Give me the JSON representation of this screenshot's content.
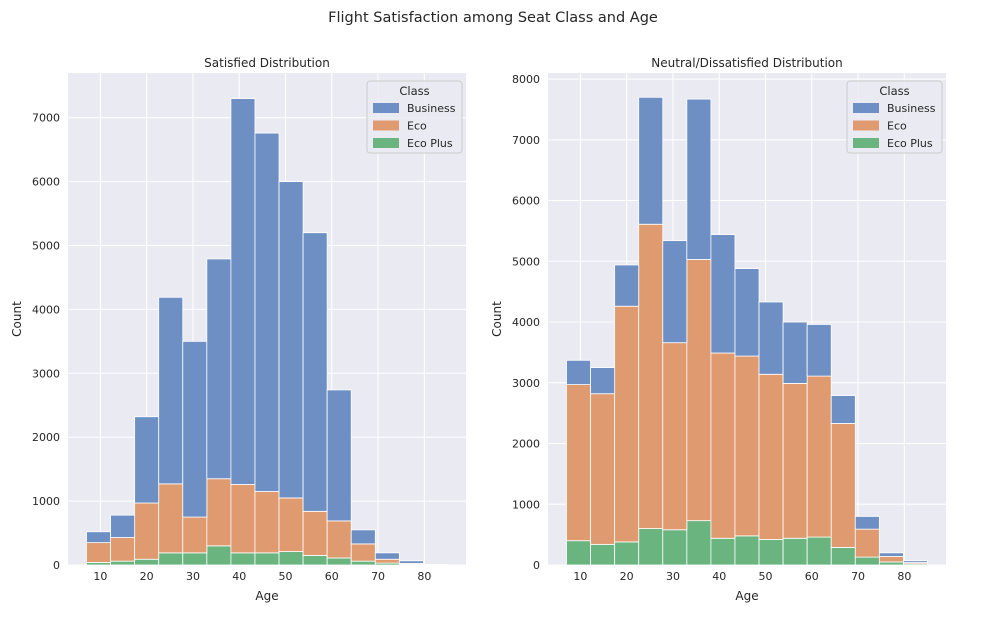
{
  "figure": {
    "title": "Flight Satisfaction among Seat Class and Age"
  },
  "colors": {
    "Business": "#6e8fc4",
    "Eco": "#e09a70",
    "Eco Plus": "#6ab57f",
    "panel_bg": "#eaeaf2",
    "grid": "#ffffff"
  },
  "chart_data": [
    {
      "type": "bar",
      "stacked": true,
      "title": "Satisfied Distribution",
      "xlabel": "Age",
      "ylabel": "Count",
      "xlim": [
        3,
        89
      ],
      "ylim": [
        0,
        7700
      ],
      "xticks": [
        10,
        20,
        30,
        40,
        50,
        60,
        70,
        80
      ],
      "yticks": [
        0,
        1000,
        2000,
        3000,
        4000,
        5000,
        6000,
        7000
      ],
      "bin_edges": [
        7,
        12.2,
        17.4,
        22.6,
        27.8,
        33,
        38.2,
        43.4,
        48.6,
        53.8,
        59,
        64.2,
        69.4,
        74.6,
        79.8,
        85
      ],
      "legend": {
        "title": "Class",
        "loc": "upper right"
      },
      "grid": true,
      "series": [
        {
          "name": "Eco Plus",
          "values": [
            40,
            60,
            90,
            190,
            190,
            300,
            190,
            190,
            210,
            150,
            110,
            60,
            30,
            10,
            5
          ]
        },
        {
          "name": "Eco",
          "values": [
            310,
            370,
            880,
            1080,
            560,
            1050,
            1070,
            960,
            840,
            690,
            580,
            270,
            60,
            15,
            5
          ]
        },
        {
          "name": "Business",
          "values": [
            170,
            350,
            1350,
            2920,
            2750,
            3440,
            6040,
            5610,
            4950,
            4360,
            2050,
            220,
            100,
            40,
            0
          ]
        }
      ],
      "totals": [
        520,
        780,
        2320,
        4190,
        3500,
        4790,
        7300,
        6760,
        6000,
        5200,
        2740,
        550,
        190,
        65,
        10
      ]
    },
    {
      "type": "bar",
      "stacked": true,
      "title": "Neutral/Dissatisfied Distribution",
      "xlabel": "Age",
      "ylabel": "Count",
      "xlim": [
        3,
        89
      ],
      "ylim": [
        0,
        8100
      ],
      "xticks": [
        10,
        20,
        30,
        40,
        50,
        60,
        70,
        80
      ],
      "yticks": [
        0,
        1000,
        2000,
        3000,
        4000,
        5000,
        6000,
        7000,
        8000
      ],
      "bin_edges": [
        7,
        12.2,
        17.4,
        22.6,
        27.8,
        33,
        38.2,
        43.4,
        48.6,
        53.8,
        59,
        64.2,
        69.4,
        74.6,
        79.8,
        85
      ],
      "legend": {
        "title": "Class",
        "loc": "upper right"
      },
      "grid": true,
      "series": [
        {
          "name": "Eco Plus",
          "values": [
            400,
            340,
            380,
            600,
            580,
            730,
            440,
            480,
            420,
            440,
            460,
            290,
            130,
            50,
            20
          ]
        },
        {
          "name": "Eco",
          "values": [
            2570,
            2480,
            3880,
            5010,
            3080,
            4300,
            3050,
            2960,
            2720,
            2550,
            2650,
            2040,
            460,
            90,
            20
          ]
        },
        {
          "name": "Business",
          "values": [
            400,
            430,
            680,
            2090,
            1680,
            2640,
            1950,
            1440,
            1190,
            1010,
            850,
            460,
            210,
            60,
            30
          ]
        }
      ],
      "totals": [
        3370,
        3250,
        4940,
        7700,
        5340,
        7670,
        5440,
        4880,
        4330,
        4000,
        3960,
        2790,
        800,
        200,
        70
      ]
    }
  ]
}
